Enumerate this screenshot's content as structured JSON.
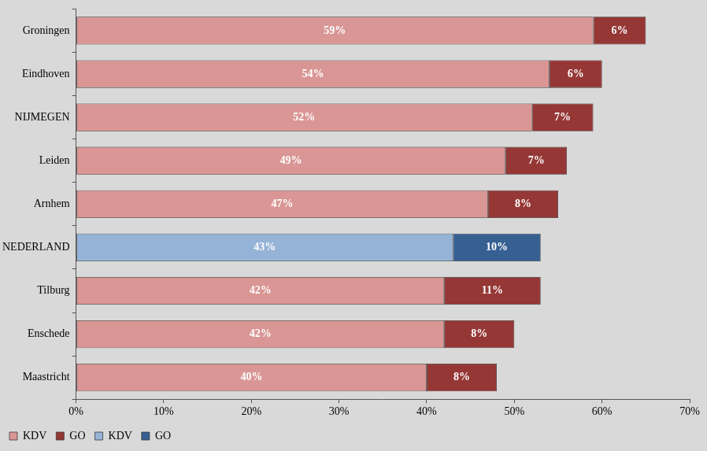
{
  "chart_data": {
    "type": "bar",
    "orientation": "horizontal",
    "stacked": true,
    "data_labels": true,
    "grid": false,
    "legend": "bottom",
    "categories": [
      "Groningen",
      "Eindhoven",
      "NIJMEGEN",
      "Leiden",
      "Arnhem",
      "NEDERLAND",
      "Tilburg",
      "Enschede",
      "Maastricht"
    ],
    "series": [
      {
        "name": "KDV",
        "color": "#d99694",
        "values": [
          59,
          54,
          52,
          49,
          47,
          null,
          42,
          42,
          40
        ],
        "value_labels": [
          "59%",
          "54%",
          "52%",
          "49%",
          "47%",
          null,
          "42%",
          "42%",
          "40%"
        ]
      },
      {
        "name": "GO",
        "color": "#953735",
        "values": [
          6,
          6,
          7,
          7,
          8,
          null,
          11,
          8,
          8
        ],
        "value_labels": [
          "6%",
          "6%",
          "7%",
          "7%",
          "8%",
          null,
          "11%",
          "8%",
          "8%"
        ]
      },
      {
        "name": "KDV",
        "color": "#95b3d7",
        "values": [
          null,
          null,
          null,
          null,
          null,
          43,
          null,
          null,
          null
        ],
        "value_labels": [
          null,
          null,
          null,
          null,
          null,
          "43%",
          null,
          null,
          null
        ]
      },
      {
        "name": "GO",
        "color": "#366092",
        "values": [
          null,
          null,
          null,
          null,
          null,
          10,
          null,
          null,
          null
        ],
        "value_labels": [
          null,
          null,
          null,
          null,
          null,
          "10%",
          null,
          null,
          null
        ]
      }
    ],
    "xlim": [
      0,
      70
    ],
    "xticks": [
      {
        "value": 0,
        "label": "0%"
      },
      {
        "value": 10,
        "label": "10%"
      },
      {
        "value": 20,
        "label": "20%"
      },
      {
        "value": 30,
        "label": "30%"
      },
      {
        "value": 40,
        "label": "40%"
      },
      {
        "value": 50,
        "label": "50%"
      },
      {
        "value": 60,
        "label": "60%"
      },
      {
        "value": 70,
        "label": "70%"
      }
    ]
  }
}
